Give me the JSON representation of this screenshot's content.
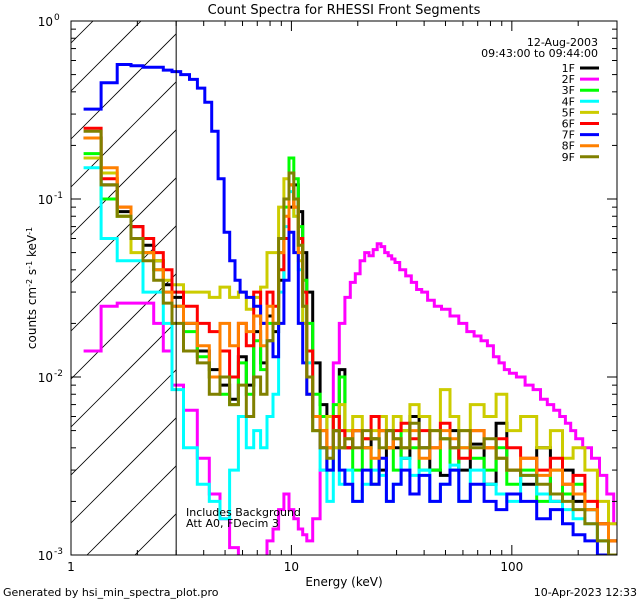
{
  "chart_data": {
    "type": "line",
    "title": "Count Spectra for RHESSI Front Segments",
    "xlabel": "Energy (keV)",
    "ylabel_main": "counts cm",
    "ylabel_parts": [
      "counts cm",
      "-2",
      " s",
      "-1",
      " keV",
      "-1"
    ],
    "xscale": "log",
    "yscale": "log",
    "xlim": [
      1,
      300
    ],
    "ylim": [
      0.001,
      1
    ],
    "x_ticks": [
      {
        "value": 1,
        "label": "1"
      },
      {
        "value": 10,
        "label": "10"
      },
      {
        "value": 100,
        "label": "100"
      }
    ],
    "y_ticks": [
      {
        "value": 0.001,
        "mantissa": "10",
        "exp": "-3"
      },
      {
        "value": 0.01,
        "mantissa": "10",
        "exp": "-2"
      },
      {
        "value": 0.1,
        "mantissa": "10",
        "exp": "-1"
      },
      {
        "value": 1,
        "mantissa": "10",
        "exp": "0"
      }
    ],
    "date": "12-Aug-2003",
    "time_range": "09:43:00 to 09:44:00",
    "annotation_lines": [
      "Includes Background",
      "Att A0, FDecim 3"
    ],
    "hatched_region_x": [
      1,
      3
    ],
    "footer_left": "Generated by hsi_min_spectra_plot.pro",
    "footer_right": "10-Apr-2023 12:33",
    "legend_position": "top-right",
    "series": [
      {
        "name": "1F",
        "color": "#000000",
        "step": true,
        "x": [
          1.25,
          1.5,
          1.75,
          2.0,
          2.25,
          2.5,
          2.75,
          3.0,
          3.5,
          4.0,
          4.5,
          5.0,
          5.5,
          6.0,
          6.5,
          7.0,
          7.5,
          8.0,
          8.5,
          9.0,
          9.5,
          10.0,
          10.5,
          11.0,
          11.5,
          12,
          13,
          14,
          15,
          16,
          17,
          18,
          20,
          22,
          24,
          26,
          28,
          30,
          33,
          36,
          40,
          45,
          50,
          55,
          60,
          70,
          80,
          90,
          100,
          120,
          140,
          160,
          180,
          200,
          230,
          260,
          290
        ],
        "y": [
          0.22,
          0.12,
          0.085,
          0.07,
          0.055,
          0.045,
          0.033,
          0.028,
          0.02,
          0.014,
          0.011,
          0.009,
          0.0075,
          0.013,
          0.009,
          0.018,
          0.012,
          0.022,
          0.018,
          0.035,
          0.06,
          0.09,
          0.12,
          0.085,
          0.05,
          0.03,
          0.012,
          0.007,
          0.006,
          0.005,
          0.011,
          0.004,
          0.005,
          0.004,
          0.0045,
          0.003,
          0.005,
          0.004,
          0.0035,
          0.006,
          0.004,
          0.003,
          0.0028,
          0.005,
          0.003,
          0.0042,
          0.0025,
          0.0055,
          0.003,
          0.0025,
          0.004,
          0.002,
          0.003,
          0.002,
          0.0018,
          0.0015,
          0.0012
        ]
      },
      {
        "name": "2F",
        "color": "#ff00ff",
        "step": true,
        "x": [
          1.25,
          1.5,
          1.75,
          2.0,
          2.25,
          2.5,
          2.75,
          3.0,
          3.5,
          4.0,
          4.5,
          5.0,
          5.5,
          6.0,
          6.5,
          7.0,
          7.5,
          8.0,
          8.5,
          9.0,
          9.5,
          10.0,
          10.5,
          11.0,
          11.5,
          12,
          13,
          14,
          15,
          16,
          17,
          18,
          19,
          20,
          21,
          22,
          23,
          24,
          25,
          26,
          27,
          28,
          29,
          30,
          32,
          34,
          36,
          38,
          40,
          43,
          46,
          50,
          55,
          60,
          65,
          70,
          75,
          80,
          85,
          90,
          95,
          100,
          110,
          120,
          130,
          140,
          150,
          160,
          170,
          180,
          190,
          200,
          220,
          240,
          260,
          280,
          300
        ],
        "y": [
          0.014,
          0.025,
          0.026,
          0.026,
          0.026,
          0.02,
          0.014,
          0.009,
          0.0065,
          0.0035,
          0.0022,
          0.0016,
          0.0011,
          0.0008,
          0.0008,
          0.0009,
          0.0009,
          0.0012,
          0.0014,
          0.0018,
          0.0022,
          0.0018,
          0.0016,
          0.0014,
          0.0013,
          0.0012,
          0.0016,
          0.003,
          0.006,
          0.012,
          0.02,
          0.028,
          0.034,
          0.038,
          0.045,
          0.05,
          0.048,
          0.052,
          0.056,
          0.054,
          0.05,
          0.048,
          0.046,
          0.044,
          0.04,
          0.037,
          0.034,
          0.031,
          0.03,
          0.027,
          0.025,
          0.024,
          0.022,
          0.02,
          0.018,
          0.017,
          0.016,
          0.015,
          0.013,
          0.012,
          0.011,
          0.0105,
          0.01,
          0.009,
          0.0085,
          0.0075,
          0.007,
          0.0065,
          0.006,
          0.0055,
          0.005,
          0.0045,
          0.004,
          0.0035,
          0.0028,
          0.0022,
          0.0015
        ]
      },
      {
        "name": "3F",
        "color": "#00ff00",
        "step": true,
        "x": [
          1.25,
          1.5,
          1.75,
          2.0,
          2.25,
          2.5,
          2.75,
          3.0,
          3.5,
          4.0,
          4.5,
          5.0,
          5.5,
          6.0,
          6.5,
          7.0,
          7.5,
          8.0,
          8.5,
          9.0,
          9.5,
          10.0,
          10.5,
          11.0,
          11.5,
          12,
          13,
          14,
          15,
          16,
          17,
          18,
          20,
          22,
          24,
          26,
          28,
          30,
          33,
          36,
          40,
          45,
          50,
          55,
          60,
          70,
          80,
          90,
          100,
          120,
          140,
          160,
          180,
          200,
          230,
          260,
          290
        ],
        "y": [
          0.18,
          0.1,
          0.08,
          0.06,
          0.05,
          0.04,
          0.03,
          0.025,
          0.018,
          0.013,
          0.01,
          0.008,
          0.007,
          0.012,
          0.008,
          0.016,
          0.011,
          0.02,
          0.02,
          0.05,
          0.09,
          0.17,
          0.13,
          0.07,
          0.035,
          0.02,
          0.008,
          0.006,
          0.003,
          0.007,
          0.01,
          0.005,
          0.003,
          0.004,
          0.0025,
          0.005,
          0.004,
          0.003,
          0.005,
          0.004,
          0.003,
          0.003,
          0.0045,
          0.003,
          0.004,
          0.0035,
          0.003,
          0.004,
          0.0025,
          0.003,
          0.002,
          0.003,
          0.0022,
          0.0025,
          0.0018,
          0.0012,
          0.001
        ]
      },
      {
        "name": "4F",
        "color": "#00ffff",
        "step": true,
        "x": [
          1.25,
          1.5,
          1.75,
          2.0,
          2.25,
          2.5,
          2.75,
          3.0,
          3.5,
          4.0,
          4.5,
          5.0,
          5.5,
          6.0,
          6.5,
          7.0,
          7.5,
          8.0,
          8.5,
          9.0,
          9.5,
          10.0,
          10.5,
          11.0,
          11.5,
          12,
          13,
          14,
          15,
          16,
          17,
          18,
          20,
          22,
          24,
          26,
          28,
          30,
          33,
          36,
          40,
          45,
          50,
          55,
          60,
          70,
          80,
          90,
          100,
          120,
          140,
          160,
          180,
          200,
          230,
          260,
          290
        ],
        "y": [
          0.15,
          0.06,
          0.045,
          0.045,
          0.03,
          0.03,
          0.02,
          0.0085,
          0.004,
          0.0025,
          0.002,
          0.0016,
          0.003,
          0.006,
          0.004,
          0.005,
          0.004,
          0.006,
          0.008,
          0.03,
          0.07,
          0.11,
          0.08,
          0.04,
          0.02,
          0.012,
          0.005,
          0.003,
          0.002,
          0.004,
          0.0025,
          0.003,
          0.002,
          0.0025,
          0.003,
          0.0028,
          0.002,
          0.0025,
          0.0035,
          0.0028,
          0.003,
          0.002,
          0.0025,
          0.0032,
          0.002,
          0.003,
          0.0025,
          0.0022,
          0.002,
          0.0028,
          0.0022,
          0.002,
          0.0018,
          0.0016,
          0.0015,
          0.0012,
          0.001
        ]
      },
      {
        "name": "5F",
        "color": "#cccc00",
        "step": true,
        "x": [
          1.25,
          1.5,
          1.75,
          2.0,
          2.25,
          2.5,
          2.75,
          3.0,
          3.5,
          4.0,
          4.5,
          5.0,
          5.5,
          6.0,
          6.5,
          7.0,
          7.5,
          8.0,
          8.5,
          9.0,
          9.5,
          10.0,
          10.5,
          11.0,
          11.5,
          12,
          13,
          14,
          15,
          16,
          17,
          18,
          20,
          22,
          24,
          26,
          28,
          30,
          33,
          36,
          40,
          45,
          50,
          55,
          60,
          70,
          80,
          90,
          100,
          120,
          140,
          160,
          180,
          200,
          230,
          260,
          290
        ],
        "y": [
          0.17,
          0.14,
          0.08,
          0.05,
          0.05,
          0.045,
          0.035,
          0.033,
          0.03,
          0.03,
          0.028,
          0.032,
          0.028,
          0.03,
          0.024,
          0.028,
          0.032,
          0.05,
          0.05,
          0.09,
          0.13,
          0.12,
          0.08,
          0.045,
          0.02,
          0.008,
          0.005,
          0.004,
          0.006,
          0.004,
          0.007,
          0.005,
          0.006,
          0.0045,
          0.005,
          0.006,
          0.004,
          0.006,
          0.005,
          0.007,
          0.006,
          0.005,
          0.0085,
          0.006,
          0.005,
          0.007,
          0.006,
          0.008,
          0.005,
          0.006,
          0.004,
          0.005,
          0.0035,
          0.004,
          0.003,
          0.002,
          0.0015
        ]
      },
      {
        "name": "6F",
        "color": "#ff0000",
        "step": true,
        "x": [
          1.25,
          1.5,
          1.75,
          2.0,
          2.25,
          2.5,
          2.75,
          3.0,
          3.5,
          4.0,
          4.5,
          5.0,
          5.5,
          6.0,
          6.5,
          7.0,
          7.5,
          8.0,
          8.5,
          9.0,
          9.5,
          10.0,
          10.5,
          11.0,
          11.5,
          12,
          13,
          14,
          15,
          16,
          17,
          18,
          20,
          22,
          24,
          26,
          28,
          30,
          33,
          36,
          40,
          45,
          50,
          55,
          60,
          70,
          80,
          90,
          100,
          120,
          140,
          160,
          180,
          200,
          230,
          260,
          290
        ],
        "y": [
          0.25,
          0.13,
          0.09,
          0.07,
          0.06,
          0.05,
          0.04,
          0.03,
          0.025,
          0.02,
          0.018,
          0.014,
          0.01,
          0.02,
          0.015,
          0.03,
          0.02,
          0.03,
          0.025,
          0.04,
          0.06,
          0.12,
          0.09,
          0.06,
          0.03,
          0.014,
          0.006,
          0.005,
          0.004,
          0.006,
          0.005,
          0.004,
          0.005,
          0.0045,
          0.006,
          0.005,
          0.004,
          0.005,
          0.0055,
          0.0045,
          0.005,
          0.004,
          0.0055,
          0.004,
          0.0035,
          0.005,
          0.004,
          0.0045,
          0.004,
          0.0035,
          0.003,
          0.0035,
          0.0025,
          0.0028,
          0.002,
          0.0015,
          0.0012
        ]
      },
      {
        "name": "7F",
        "color": "#0000ff",
        "step": true,
        "x": [
          1.25,
          1.5,
          1.75,
          2.0,
          2.25,
          2.5,
          2.75,
          3.0,
          3.3,
          3.6,
          3.9,
          4.2,
          4.5,
          4.8,
          5.1,
          5.4,
          5.7,
          6.0,
          6.5,
          7.0,
          7.5,
          8.0,
          8.5,
          9.0,
          9.5,
          10.0,
          10.5,
          11.0,
          11.5,
          12,
          13,
          14,
          15,
          16,
          17,
          18,
          20,
          22,
          24,
          26,
          28,
          30,
          33,
          36,
          40,
          45,
          50,
          55,
          60,
          70,
          80,
          90,
          100,
          120,
          140,
          160,
          180,
          200,
          230,
          260,
          290
        ],
        "y": [
          0.32,
          0.45,
          0.57,
          0.56,
          0.55,
          0.55,
          0.53,
          0.52,
          0.5,
          0.47,
          0.42,
          0.35,
          0.24,
          0.13,
          0.065,
          0.045,
          0.035,
          0.03,
          0.028,
          0.025,
          0.02,
          0.016,
          0.013,
          0.02,
          0.035,
          0.065,
          0.05,
          0.02,
          0.012,
          0.008,
          0.006,
          0.004,
          0.003,
          0.005,
          0.003,
          0.0025,
          0.002,
          0.003,
          0.0025,
          0.0035,
          0.002,
          0.0025,
          0.003,
          0.0022,
          0.0028,
          0.002,
          0.0025,
          0.003,
          0.002,
          0.0025,
          0.002,
          0.0018,
          0.0022,
          0.002,
          0.0016,
          0.0018,
          0.0015,
          0.0013,
          0.0012,
          0.001,
          0.001
        ]
      },
      {
        "name": "8F",
        "color": "#ff8000",
        "step": true,
        "x": [
          1.25,
          1.5,
          1.75,
          2.0,
          2.25,
          2.5,
          2.75,
          3.0,
          3.5,
          4.0,
          4.5,
          5.0,
          5.5,
          6.0,
          6.5,
          7.0,
          7.5,
          8.0,
          8.5,
          9.0,
          9.5,
          10.0,
          10.5,
          11.0,
          11.5,
          12,
          13,
          14,
          15,
          16,
          17,
          18,
          20,
          22,
          24,
          26,
          28,
          30,
          33,
          36,
          40,
          45,
          50,
          55,
          60,
          70,
          80,
          90,
          100,
          120,
          140,
          160,
          180,
          200,
          230,
          260,
          290
        ],
        "y": [
          0.22,
          0.15,
          0.09,
          0.06,
          0.05,
          0.04,
          0.03,
          0.025,
          0.02,
          0.015,
          0.01,
          0.02,
          0.015,
          0.02,
          0.018,
          0.022,
          0.015,
          0.025,
          0.02,
          0.05,
          0.08,
          0.12,
          0.09,
          0.05,
          0.025,
          0.01,
          0.006,
          0.005,
          0.004,
          0.005,
          0.004,
          0.0045,
          0.005,
          0.004,
          0.0035,
          0.005,
          0.004,
          0.0045,
          0.004,
          0.005,
          0.0035,
          0.004,
          0.005,
          0.0045,
          0.004,
          0.005,
          0.004,
          0.0035,
          0.003,
          0.0035,
          0.0028,
          0.003,
          0.0025,
          0.0022,
          0.0018,
          0.0015,
          0.0012
        ]
      },
      {
        "name": "9F",
        "color": "#808000",
        "step": true,
        "x": [
          1.25,
          1.5,
          1.75,
          2.0,
          2.25,
          2.5,
          2.75,
          3.0,
          3.5,
          4.0,
          4.5,
          5.0,
          5.5,
          6.0,
          6.5,
          7.0,
          7.5,
          8.0,
          8.5,
          9.0,
          9.5,
          10.0,
          10.5,
          11.0,
          11.5,
          12,
          13,
          14,
          15,
          16,
          17,
          18,
          20,
          22,
          24,
          26,
          28,
          30,
          33,
          36,
          40,
          45,
          50,
          55,
          60,
          70,
          80,
          90,
          100,
          120,
          140,
          160,
          180,
          200,
          230,
          260,
          290
        ],
        "y": [
          0.24,
          0.12,
          0.08,
          0.06,
          0.045,
          0.035,
          0.026,
          0.02,
          0.014,
          0.012,
          0.008,
          0.01,
          0.007,
          0.009,
          0.006,
          0.01,
          0.008,
          0.016,
          0.02,
          0.06,
          0.1,
          0.14,
          0.1,
          0.055,
          0.025,
          0.01,
          0.005,
          0.004,
          0.0035,
          0.005,
          0.004,
          0.0045,
          0.004,
          0.005,
          0.0045,
          0.004,
          0.005,
          0.0045,
          0.004,
          0.0055,
          0.004,
          0.005,
          0.0045,
          0.004,
          0.005,
          0.004,
          0.0045,
          0.0035,
          0.003,
          0.0028,
          0.0025,
          0.0022,
          0.002,
          0.0018,
          0.0015,
          0.0012,
          0.001
        ]
      }
    ]
  }
}
